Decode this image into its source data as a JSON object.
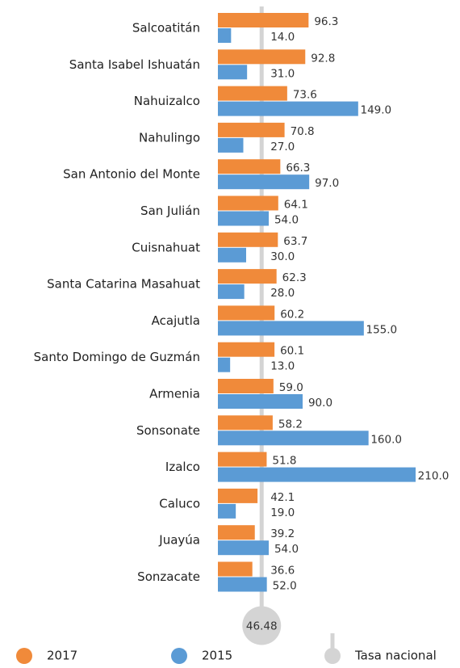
{
  "chart_data": {
    "type": "bar",
    "orientation": "horizontal",
    "categories": [
      "Salcoatitán",
      "Santa Isabel Ishuatán",
      "Nahuizalco",
      "Nahulingo",
      "San Antonio del Monte",
      "San Julián",
      "Cuisnahuat",
      "Santa Catarina Masahuat",
      "Acajutla",
      "Santo Domingo de Guzmán",
      "Armenia",
      "Sonsonate",
      "Izalco",
      "Caluco",
      "Juayúa",
      "Sonzacate"
    ],
    "series": [
      {
        "name": "2017",
        "color": "#f08a3a",
        "values": [
          96.3,
          92.8,
          73.6,
          70.8,
          66.3,
          64.1,
          63.7,
          62.3,
          60.2,
          60.1,
          59.0,
          58.2,
          51.8,
          42.1,
          39.2,
          36.6
        ],
        "value_labels": [
          "96.3",
          "92.8",
          "73.6",
          "70.8",
          "66.3",
          "64.1",
          "63.7",
          "62.3",
          "60.2",
          "60.1",
          "59.0",
          "58.2",
          "51.8",
          "42.1",
          "39.2",
          "36.6"
        ]
      },
      {
        "name": "2015",
        "color": "#5b9bd5",
        "values": [
          14,
          31,
          149,
          27,
          97,
          54,
          30,
          28,
          155,
          13,
          90,
          160,
          210,
          19,
          54,
          52
        ],
        "value_labels": [
          "14.0",
          "31.0",
          "149.0",
          "27.0",
          "97.0",
          "54.0",
          "30.0",
          "28.0",
          "155.0",
          "13.0",
          "90.0",
          "160.0",
          "210.0",
          "19.0",
          "54.0",
          "52.0"
        ]
      }
    ],
    "reference": {
      "name": "Tasa nacional",
      "value": 46.48,
      "color": "#d4d4d4"
    }
  }
}
